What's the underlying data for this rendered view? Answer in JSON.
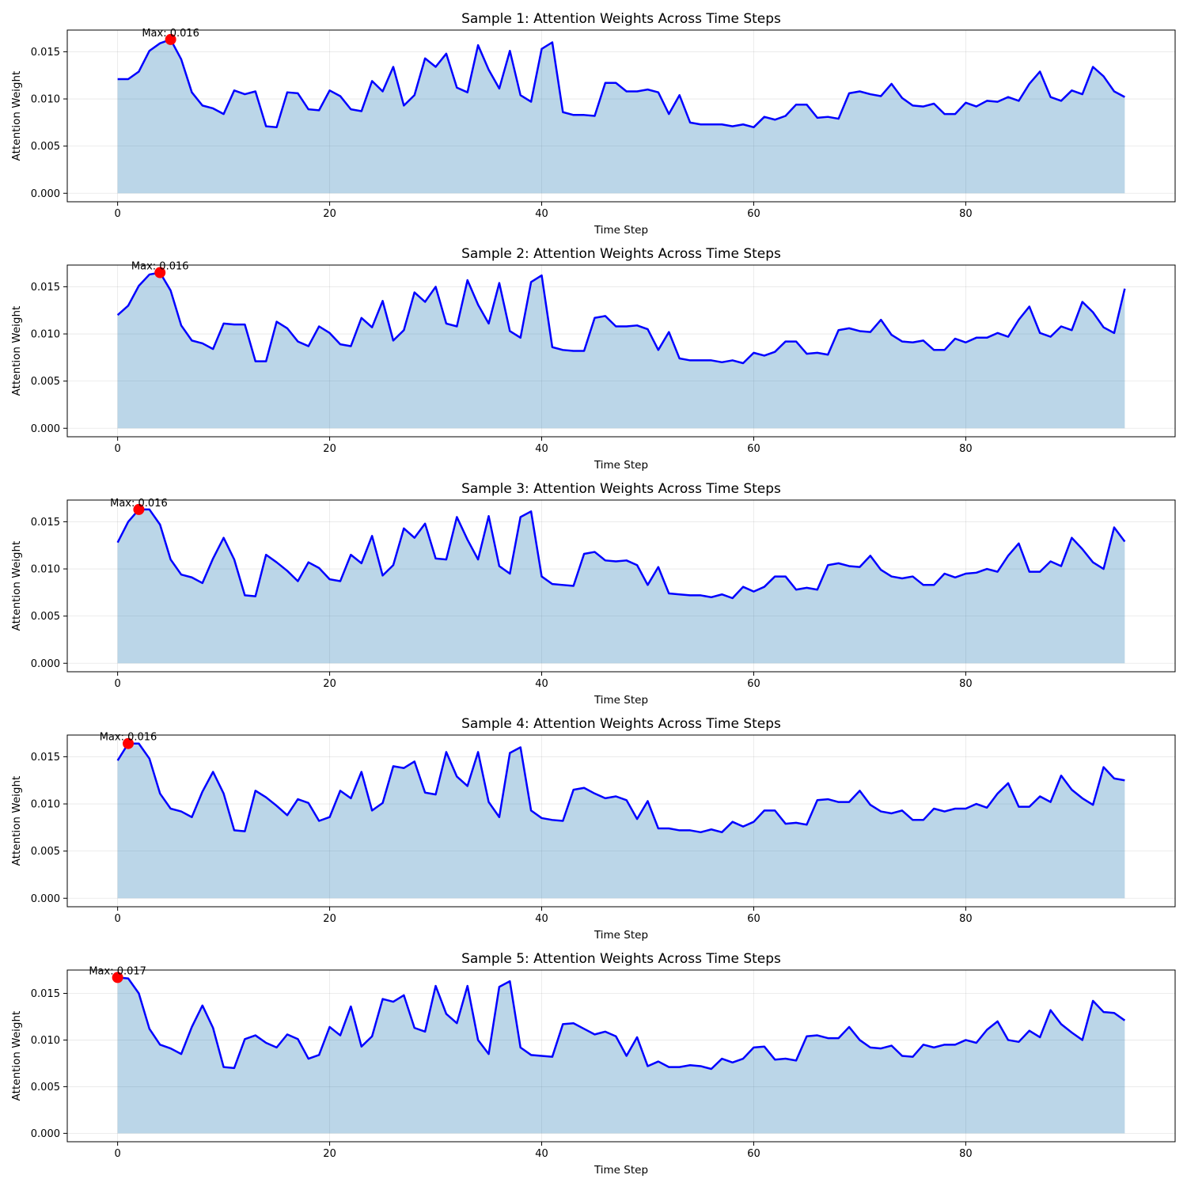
{
  "chart_data": [
    {
      "type": "area",
      "title": "Sample 1: Attention Weights Across Time Steps",
      "xlabel": "Time Step",
      "ylabel": "Attention Weight",
      "xlim": [
        -4.75,
        99.75
      ],
      "ylim": [
        -0.0009,
        0.0173
      ],
      "xticks": [
        "0",
        "20",
        "40",
        "60",
        "80"
      ],
      "yticks": [
        "0.000",
        "0.005",
        "0.010",
        "0.015"
      ],
      "grid": true,
      "line_color": "#0000ff",
      "fill_color": "#1f77b4",
      "x": [
        0,
        1,
        2,
        3,
        4,
        5,
        6,
        7,
        8,
        9,
        10,
        11,
        12,
        13,
        14,
        15,
        16,
        17,
        18,
        19,
        20,
        21,
        22,
        23,
        24,
        25,
        26,
        27,
        28,
        29,
        30,
        31,
        32,
        33,
        34,
        35,
        36,
        37,
        38,
        39,
        40,
        41,
        42,
        43,
        44,
        45,
        46,
        47,
        48,
        49,
        50,
        51,
        52,
        53,
        54,
        55,
        56,
        57,
        58,
        59,
        60,
        61,
        62,
        63,
        64,
        65,
        66,
        67,
        68,
        69,
        70,
        71,
        72,
        73,
        74,
        75,
        76,
        77,
        78,
        79,
        80,
        81,
        82,
        83,
        84,
        85,
        86,
        87,
        88,
        89,
        90,
        91,
        92,
        93,
        94,
        95
      ],
      "values": [
        0.0121,
        0.0121,
        0.0129,
        0.0151,
        0.0159,
        0.0163,
        0.0142,
        0.0107,
        0.0093,
        0.009,
        0.0084,
        0.0109,
        0.0105,
        0.0108,
        0.0071,
        0.007,
        0.0107,
        0.0106,
        0.0089,
        0.0088,
        0.0109,
        0.0103,
        0.0089,
        0.0087,
        0.0119,
        0.0108,
        0.0134,
        0.0093,
        0.0104,
        0.0143,
        0.0134,
        0.0148,
        0.0112,
        0.0107,
        0.0157,
        0.0131,
        0.0111,
        0.0151,
        0.0104,
        0.0097,
        0.0153,
        0.016,
        0.0086,
        0.0083,
        0.0083,
        0.0082,
        0.0117,
        0.0117,
        0.0108,
        0.0108,
        0.011,
        0.0107,
        0.0084,
        0.0104,
        0.0075,
        0.0073,
        0.0073,
        0.0073,
        0.0071,
        0.0073,
        0.007,
        0.0081,
        0.0078,
        0.0082,
        0.0094,
        0.0094,
        0.008,
        0.0081,
        0.0079,
        0.0106,
        0.0108,
        0.0105,
        0.0103,
        0.0116,
        0.0101,
        0.0093,
        0.0092,
        0.0095,
        0.0084,
        0.0084,
        0.0096,
        0.0092,
        0.0098,
        0.0097,
        0.0102,
        0.0098,
        0.0116,
        0.0129,
        0.0102,
        0.0098,
        0.0109,
        0.0105,
        0.0134,
        0.0124,
        0.0108,
        0.0102
      ],
      "max_point": {
        "x": 5,
        "y": 0.0163
      },
      "annotation": "Max: 0.016"
    },
    {
      "type": "area",
      "title": "Sample 2: Attention Weights Across Time Steps",
      "xlabel": "Time Step",
      "ylabel": "Attention Weight",
      "xlim": [
        -4.75,
        99.75
      ],
      "ylim": [
        -0.0009,
        0.0173
      ],
      "xticks": [
        "0",
        "20",
        "40",
        "60",
        "80"
      ],
      "yticks": [
        "0.000",
        "0.005",
        "0.010",
        "0.015"
      ],
      "grid": true,
      "line_color": "#0000ff",
      "fill_color": "#1f77b4",
      "x": [
        0,
        1,
        2,
        3,
        4,
        5,
        6,
        7,
        8,
        9,
        10,
        11,
        12,
        13,
        14,
        15,
        16,
        17,
        18,
        19,
        20,
        21,
        22,
        23,
        24,
        25,
        26,
        27,
        28,
        29,
        30,
        31,
        32,
        33,
        34,
        35,
        36,
        37,
        38,
        39,
        40,
        41,
        42,
        43,
        44,
        45,
        46,
        47,
        48,
        49,
        50,
        51,
        52,
        53,
        54,
        55,
        56,
        57,
        58,
        59,
        60,
        61,
        62,
        63,
        64,
        65,
        66,
        67,
        68,
        69,
        70,
        71,
        72,
        73,
        74,
        75,
        76,
        77,
        78,
        79,
        80,
        81,
        82,
        83,
        84,
        85,
        86,
        87,
        88,
        89,
        90,
        91,
        92,
        93,
        94,
        95
      ],
      "values": [
        0.012,
        0.013,
        0.0151,
        0.0163,
        0.0165,
        0.0146,
        0.0109,
        0.0093,
        0.009,
        0.0084,
        0.0111,
        0.011,
        0.011,
        0.0071,
        0.0071,
        0.0113,
        0.0106,
        0.0092,
        0.0087,
        0.0108,
        0.0101,
        0.0089,
        0.0087,
        0.0117,
        0.0107,
        0.0135,
        0.0093,
        0.0104,
        0.0144,
        0.0134,
        0.015,
        0.0111,
        0.0108,
        0.0157,
        0.0131,
        0.0111,
        0.0154,
        0.0103,
        0.0096,
        0.0155,
        0.0162,
        0.0086,
        0.0083,
        0.0082,
        0.0082,
        0.0117,
        0.0119,
        0.0108,
        0.0108,
        0.0109,
        0.0105,
        0.0083,
        0.0102,
        0.0074,
        0.0072,
        0.0072,
        0.0072,
        0.007,
        0.0072,
        0.0069,
        0.008,
        0.0077,
        0.0081,
        0.0092,
        0.0092,
        0.0079,
        0.008,
        0.0078,
        0.0104,
        0.0106,
        0.0103,
        0.0102,
        0.0115,
        0.0099,
        0.0092,
        0.0091,
        0.0093,
        0.0083,
        0.0083,
        0.0095,
        0.0091,
        0.0096,
        0.0096,
        0.0101,
        0.0097,
        0.0115,
        0.0129,
        0.0101,
        0.0097,
        0.0108,
        0.0104,
        0.0134,
        0.0123,
        0.0107,
        0.0101,
        0.0148
      ],
      "max_point": {
        "x": 4,
        "y": 0.0165
      },
      "annotation": "Max: 0.016"
    },
    {
      "type": "area",
      "title": "Sample 3: Attention Weights Across Time Steps",
      "xlabel": "Time Step",
      "ylabel": "Attention Weight",
      "xlim": [
        -4.75,
        99.75
      ],
      "ylim": [
        -0.0009,
        0.0173
      ],
      "xticks": [
        "0",
        "20",
        "40",
        "60",
        "80"
      ],
      "yticks": [
        "0.000",
        "0.005",
        "0.010",
        "0.015"
      ],
      "grid": true,
      "line_color": "#0000ff",
      "fill_color": "#1f77b4",
      "x": [
        0,
        1,
        2,
        3,
        4,
        5,
        6,
        7,
        8,
        9,
        10,
        11,
        12,
        13,
        14,
        15,
        16,
        17,
        18,
        19,
        20,
        21,
        22,
        23,
        24,
        25,
        26,
        27,
        28,
        29,
        30,
        31,
        32,
        33,
        34,
        35,
        36,
        37,
        38,
        39,
        40,
        41,
        42,
        43,
        44,
        45,
        46,
        47,
        48,
        49,
        50,
        51,
        52,
        53,
        54,
        55,
        56,
        57,
        58,
        59,
        60,
        61,
        62,
        63,
        64,
        65,
        66,
        67,
        68,
        69,
        70,
        71,
        72,
        73,
        74,
        75,
        76,
        77,
        78,
        79,
        80,
        81,
        82,
        83,
        84,
        85,
        86,
        87,
        88,
        89,
        90,
        91,
        92,
        93,
        94,
        95
      ],
      "values": [
        0.0128,
        0.015,
        0.0163,
        0.0163,
        0.0147,
        0.011,
        0.0094,
        0.0091,
        0.0085,
        0.0111,
        0.0133,
        0.011,
        0.0072,
        0.0071,
        0.0115,
        0.0107,
        0.0098,
        0.0087,
        0.0107,
        0.0101,
        0.0089,
        0.0087,
        0.0115,
        0.0106,
        0.0135,
        0.0093,
        0.0104,
        0.0143,
        0.0133,
        0.0148,
        0.0111,
        0.011,
        0.0155,
        0.0131,
        0.011,
        0.0156,
        0.0103,
        0.0095,
        0.0155,
        0.0161,
        0.0092,
        0.0084,
        0.0083,
        0.0082,
        0.0116,
        0.0118,
        0.0109,
        0.0108,
        0.0109,
        0.0104,
        0.0083,
        0.0102,
        0.0074,
        0.0073,
        0.0072,
        0.0072,
        0.007,
        0.0073,
        0.0069,
        0.0081,
        0.0076,
        0.0081,
        0.0092,
        0.0092,
        0.0078,
        0.008,
        0.0078,
        0.0104,
        0.0106,
        0.0103,
        0.0102,
        0.0114,
        0.0099,
        0.0092,
        0.009,
        0.0092,
        0.0083,
        0.0083,
        0.0095,
        0.0091,
        0.0095,
        0.0096,
        0.01,
        0.0097,
        0.0114,
        0.0127,
        0.0097,
        0.0097,
        0.0108,
        0.0103,
        0.0133,
        0.0121,
        0.0107,
        0.01,
        0.0144,
        0.0129
      ],
      "max_point": {
        "x": 2,
        "y": 0.0163
      },
      "annotation": "Max: 0.016"
    },
    {
      "type": "area",
      "title": "Sample 4: Attention Weights Across Time Steps",
      "xlabel": "Time Step",
      "ylabel": "Attention Weight",
      "xlim": [
        -4.75,
        99.75
      ],
      "ylim": [
        -0.0009,
        0.0173
      ],
      "xticks": [
        "0",
        "20",
        "40",
        "60",
        "80"
      ],
      "yticks": [
        "0.000",
        "0.005",
        "0.010",
        "0.015"
      ],
      "grid": true,
      "line_color": "#0000ff",
      "fill_color": "#1f77b4",
      "x": [
        0,
        1,
        2,
        3,
        4,
        5,
        6,
        7,
        8,
        9,
        10,
        11,
        12,
        13,
        14,
        15,
        16,
        17,
        18,
        19,
        20,
        21,
        22,
        23,
        24,
        25,
        26,
        27,
        28,
        29,
        30,
        31,
        32,
        33,
        34,
        35,
        36,
        37,
        38,
        39,
        40,
        41,
        42,
        43,
        44,
        45,
        46,
        47,
        48,
        49,
        50,
        51,
        52,
        53,
        54,
        55,
        56,
        57,
        58,
        59,
        60,
        61,
        62,
        63,
        64,
        65,
        66,
        67,
        68,
        69,
        70,
        71,
        72,
        73,
        74,
        75,
        76,
        77,
        78,
        79,
        80,
        81,
        82,
        83,
        84,
        85,
        86,
        87,
        88,
        89,
        90,
        91,
        92,
        93,
        94,
        95
      ],
      "values": [
        0.0146,
        0.0164,
        0.0164,
        0.0148,
        0.0111,
        0.0095,
        0.0092,
        0.0086,
        0.0113,
        0.0134,
        0.0111,
        0.0072,
        0.0071,
        0.0114,
        0.0107,
        0.0098,
        0.0088,
        0.0105,
        0.0101,
        0.0082,
        0.0086,
        0.0114,
        0.0106,
        0.0134,
        0.0093,
        0.0101,
        0.014,
        0.0138,
        0.0145,
        0.0112,
        0.011,
        0.0155,
        0.0129,
        0.0119,
        0.0155,
        0.0102,
        0.0086,
        0.0154,
        0.016,
        0.0093,
        0.0085,
        0.0083,
        0.0082,
        0.0115,
        0.0117,
        0.0111,
        0.0106,
        0.0108,
        0.0104,
        0.0084,
        0.0103,
        0.0074,
        0.0074,
        0.0072,
        0.0072,
        0.007,
        0.0073,
        0.007,
        0.0081,
        0.0076,
        0.0081,
        0.0093,
        0.0093,
        0.0079,
        0.008,
        0.0078,
        0.0104,
        0.0105,
        0.0102,
        0.0102,
        0.0114,
        0.0099,
        0.0092,
        0.009,
        0.0093,
        0.0083,
        0.0083,
        0.0095,
        0.0092,
        0.0095,
        0.0095,
        0.01,
        0.0096,
        0.0111,
        0.0122,
        0.0097,
        0.0097,
        0.0108,
        0.0102,
        0.013,
        0.0115,
        0.0106,
        0.0099,
        0.0139,
        0.0127,
        0.0125
      ],
      "max_point": {
        "x": 1,
        "y": 0.0164
      },
      "annotation": "Max: 0.016"
    },
    {
      "type": "area",
      "title": "Sample 5: Attention Weights Across Time Steps",
      "xlabel": "Time Step",
      "ylabel": "Attention Weight",
      "xlim": [
        -4.75,
        99.75
      ],
      "ylim": [
        -0.0009,
        0.0175
      ],
      "xticks": [
        "0",
        "20",
        "40",
        "60",
        "80"
      ],
      "yticks": [
        "0.000",
        "0.005",
        "0.010",
        "0.015"
      ],
      "grid": true,
      "line_color": "#0000ff",
      "fill_color": "#1f77b4",
      "x": [
        0,
        1,
        2,
        3,
        4,
        5,
        6,
        7,
        8,
        9,
        10,
        11,
        12,
        13,
        14,
        15,
        16,
        17,
        18,
        19,
        20,
        21,
        22,
        23,
        24,
        25,
        26,
        27,
        28,
        29,
        30,
        31,
        32,
        33,
        34,
        35,
        36,
        37,
        38,
        39,
        40,
        41,
        42,
        43,
        44,
        45,
        46,
        47,
        48,
        49,
        50,
        51,
        52,
        53,
        54,
        55,
        56,
        57,
        58,
        59,
        60,
        61,
        62,
        63,
        64,
        65,
        66,
        67,
        68,
        69,
        70,
        71,
        72,
        73,
        74,
        75,
        76,
        77,
        78,
        79,
        80,
        81,
        82,
        83,
        84,
        85,
        86,
        87,
        88,
        89,
        90,
        91,
        92,
        93,
        94,
        95
      ],
      "values": [
        0.0167,
        0.0166,
        0.015,
        0.0112,
        0.0095,
        0.0091,
        0.0085,
        0.0114,
        0.0137,
        0.0113,
        0.0071,
        0.007,
        0.0101,
        0.0105,
        0.0097,
        0.0092,
        0.0106,
        0.0101,
        0.008,
        0.0084,
        0.0114,
        0.0105,
        0.0136,
        0.0093,
        0.0104,
        0.0144,
        0.0141,
        0.0148,
        0.0113,
        0.0109,
        0.0158,
        0.0128,
        0.0118,
        0.0158,
        0.01,
        0.0085,
        0.0157,
        0.0163,
        0.0092,
        0.0084,
        0.0083,
        0.0082,
        0.0117,
        0.0118,
        0.0112,
        0.0106,
        0.0109,
        0.0104,
        0.0083,
        0.0103,
        0.0072,
        0.0077,
        0.0071,
        0.0071,
        0.0073,
        0.0072,
        0.0069,
        0.008,
        0.0076,
        0.008,
        0.0092,
        0.0093,
        0.0079,
        0.008,
        0.0078,
        0.0104,
        0.0105,
        0.0102,
        0.0102,
        0.0114,
        0.01,
        0.0092,
        0.0091,
        0.0094,
        0.0083,
        0.0082,
        0.0095,
        0.0092,
        0.0095,
        0.0095,
        0.01,
        0.0097,
        0.0111,
        0.012,
        0.01,
        0.0098,
        0.011,
        0.0103,
        0.0132,
        0.0117,
        0.0108,
        0.01,
        0.0142,
        0.013,
        0.0129,
        0.0121
      ],
      "max_point": {
        "x": 0,
        "y": 0.0167
      },
      "annotation": "Max: 0.017"
    }
  ]
}
